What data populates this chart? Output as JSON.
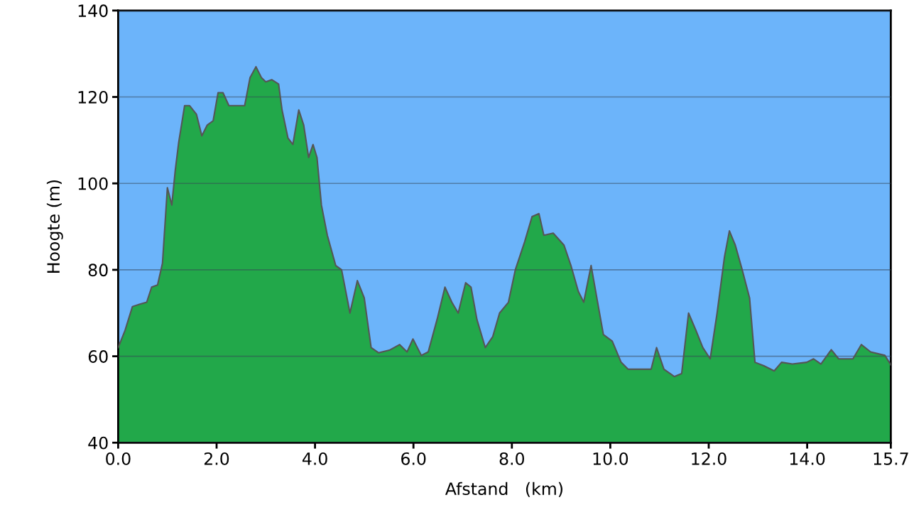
{
  "chart_data": {
    "type": "area",
    "xlabel": "Afstand   (km)",
    "ylabel": "Hoogte (m)",
    "x": [
      0,
      0.14,
      0.29,
      0.43,
      0.58,
      0.68,
      0.8,
      0.9,
      1.0,
      1.09,
      1.16,
      1.23,
      1.35,
      1.45,
      1.59,
      1.7,
      1.81,
      1.93,
      2.03,
      2.13,
      2.25,
      2.39,
      2.57,
      2.68,
      2.8,
      2.91,
      3.0,
      3.12,
      3.26,
      3.33,
      3.45,
      3.55,
      3.67,
      3.77,
      3.87,
      3.96,
      4.04,
      4.13,
      4.25,
      4.42,
      4.54,
      4.71,
      4.86,
      5.0,
      5.14,
      5.29,
      5.51,
      5.72,
      5.87,
      5.99,
      6.16,
      6.3,
      6.48,
      6.64,
      6.78,
      6.91,
      7.06,
      7.17,
      7.29,
      7.46,
      7.61,
      7.75,
      7.93,
      8.07,
      8.26,
      8.41,
      8.55,
      8.65,
      8.84,
      9.06,
      9.2,
      9.35,
      9.46,
      9.61,
      9.75,
      9.86,
      10.04,
      10.22,
      10.36,
      10.65,
      10.83,
      10.94,
      11.09,
      11.3,
      11.45,
      11.59,
      11.74,
      11.88,
      12.03,
      12.17,
      12.32,
      12.42,
      12.54,
      12.68,
      12.83,
      12.94,
      13.12,
      13.33,
      13.48,
      13.7,
      13.99,
      14.13,
      14.28,
      14.49,
      14.64,
      14.93,
      15.1,
      15.29,
      15.58,
      15.7
    ],
    "series": [
      {
        "color": "#22a84a",
        "values": [
          62,
          66,
          71.5,
          72,
          72.5,
          76,
          76.5,
          81.5,
          99,
          95,
          103,
          109.5,
          118,
          118,
          116,
          111,
          113.5,
          114.5,
          121,
          121,
          118,
          118,
          118,
          124.5,
          127,
          124.5,
          123.5,
          124,
          123,
          117,
          110.5,
          109,
          117,
          113.5,
          106,
          109,
          106,
          95,
          88,
          81,
          80,
          70,
          77.5,
          73.5,
          62,
          60.8,
          61.4,
          62.7,
          61,
          64,
          60.2,
          61,
          68.5,
          76,
          72.5,
          70,
          77,
          76,
          68.5,
          62,
          64.5,
          70,
          72.5,
          80,
          86.5,
          92.3,
          93,
          88,
          88.5,
          85.7,
          81,
          75,
          72.5,
          81,
          72,
          65,
          63.5,
          58.6,
          57,
          57,
          57,
          62,
          57,
          55.3,
          56,
          70,
          66,
          62,
          59.4,
          70,
          83,
          89,
          85.7,
          80,
          73.5,
          58.6,
          57.8,
          56.6,
          58.6,
          58.2,
          58.6,
          59.4,
          58.2,
          61.5,
          59.4,
          59.4,
          62.7,
          61,
          60.2,
          58
        ]
      }
    ],
    "xlim": [
      0,
      15.7
    ],
    "xticks": [
      {
        "value": 0,
        "label": "0.0"
      },
      {
        "value": 2,
        "label": "2.0"
      },
      {
        "value": 4,
        "label": "4.0"
      },
      {
        "value": 6,
        "label": "6.0"
      },
      {
        "value": 8,
        "label": "8.0"
      },
      {
        "value": 10,
        "label": "10.0"
      },
      {
        "value": 12,
        "label": "12.0"
      },
      {
        "value": 14,
        "label": "14.0"
      },
      15.7
    ],
    "ylim": [
      40,
      140
    ],
    "yticks": [
      40,
      60,
      80,
      100,
      120,
      140
    ],
    "grid": "y"
  }
}
